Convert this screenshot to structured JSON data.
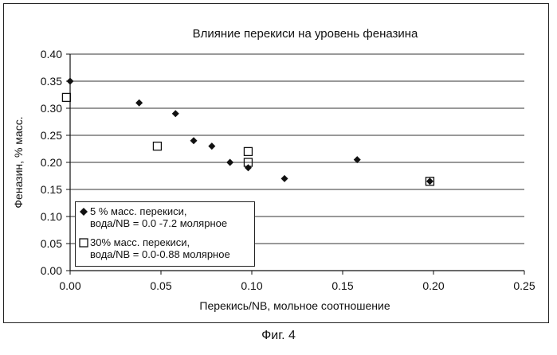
{
  "chart_data": {
    "type": "scatter",
    "title": "Влияние перекиси на уровень феназина",
    "xlabel": "Перекись/NB, мольное соотношение",
    "ylabel": "Феназин, % масс.",
    "xlim": [
      0.0,
      0.25
    ],
    "ylim": [
      0.0,
      0.4
    ],
    "x_ticks": [
      "0.00",
      "0.05",
      "0.10",
      "0.15",
      "0.20",
      "0.25"
    ],
    "y_ticks": [
      "0.00",
      "0.05",
      "0.10",
      "0.15",
      "0.20",
      "0.25",
      "0.30",
      "0.35",
      "0.40"
    ],
    "grid": "horizontal",
    "legend_position": "bottom-left",
    "series": [
      {
        "name": "5 % масс. перекиси,",
        "name_line2": "вода/NB = 0.0 -7.2 молярное",
        "marker": "diamond",
        "color": "#111111",
        "points": [
          [
            0.0,
            0.35
          ],
          [
            0.038,
            0.31
          ],
          [
            0.058,
            0.29
          ],
          [
            0.068,
            0.24
          ],
          [
            0.078,
            0.23
          ],
          [
            0.088,
            0.2
          ],
          [
            0.098,
            0.19
          ],
          [
            0.118,
            0.17
          ],
          [
            0.158,
            0.205
          ],
          [
            0.198,
            0.165
          ]
        ]
      },
      {
        "name": "30% масс. перекиси,",
        "name_line2": "вода/NB = 0.0-0.88 молярное",
        "marker": "square",
        "color": "#111111",
        "points": [
          [
            -0.002,
            0.32
          ],
          [
            0.048,
            0.23
          ],
          [
            0.098,
            0.22
          ],
          [
            0.098,
            0.2
          ],
          [
            0.198,
            0.165
          ]
        ]
      }
    ]
  },
  "caption": "Фиг. 4"
}
